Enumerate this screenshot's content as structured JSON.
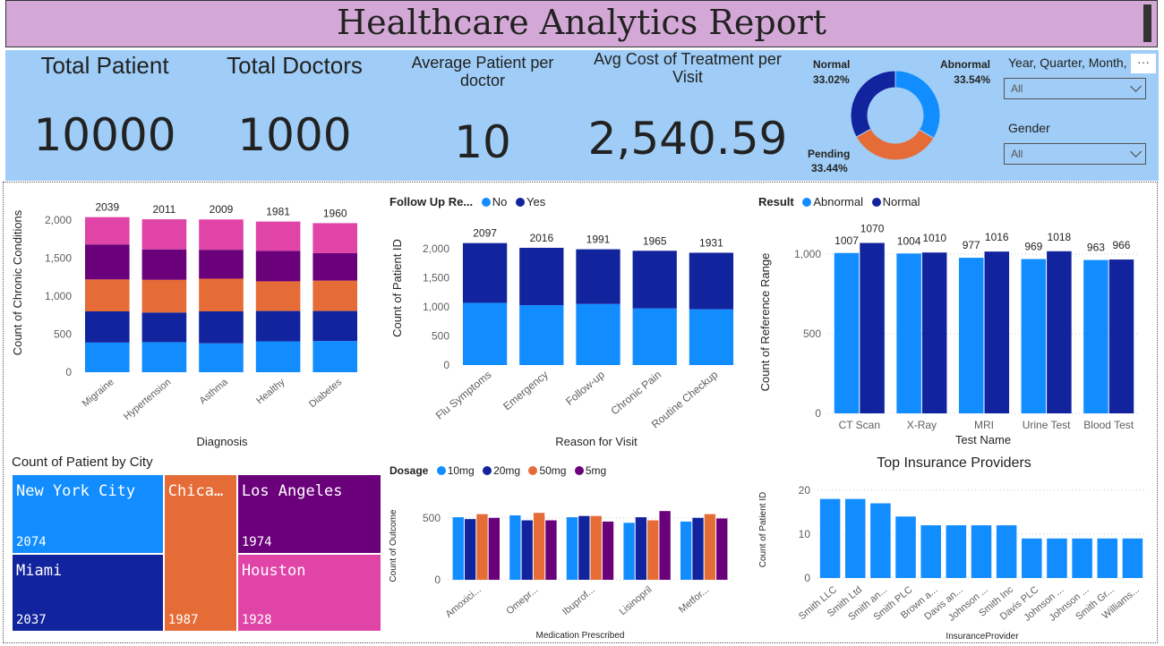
{
  "header": {
    "title": "Healthcare Analytics Report"
  },
  "kpis": [
    {
      "label": "Total Patient",
      "value": "10000"
    },
    {
      "label": "Total Doctors",
      "value": "1000"
    },
    {
      "label": "Average Patient per doctor",
      "value": "10"
    },
    {
      "label": "Avg Cost of Treatment per Visit",
      "value": "2,540.59"
    }
  ],
  "donut": {
    "labels": [
      {
        "name": "Normal",
        "pct": "33.02%"
      },
      {
        "name": "Abnormal",
        "pct": "33.54%"
      },
      {
        "name": "Pending",
        "pct": "33.44%"
      }
    ],
    "values": [
      33.54,
      33.44,
      33.02
    ],
    "colors": [
      "#118dff",
      "#e66c37",
      "#12239e"
    ]
  },
  "slicers": {
    "date": {
      "title": "Year, Quarter, Month,",
      "value": "All"
    },
    "gender": {
      "title": "Gender",
      "value": "All"
    },
    "more_label": "···"
  },
  "chart_data": [
    {
      "type": "bar",
      "stacked": true,
      "categories": [
        "Migraine",
        "Hypertension",
        "Asthma",
        "Healthy",
        "Diabetes"
      ],
      "totals": [
        "2039",
        "2011",
        "2009",
        "1981",
        "1960"
      ],
      "series": [
        {
          "color": "#118dff",
          "values": [
            390,
            395,
            380,
            405,
            410
          ]
        },
        {
          "color": "#12239e",
          "values": [
            410,
            390,
            420,
            400,
            395
          ]
        },
        {
          "color": "#e66c37",
          "values": [
            420,
            430,
            430,
            390,
            400
          ]
        },
        {
          "color": "#6b007b",
          "values": [
            460,
            400,
            380,
            400,
            360
          ]
        },
        {
          "color": "#e044a7",
          "values": [
            359,
            396,
            399,
            386,
            395
          ]
        }
      ],
      "xlabel": "Diagnosis",
      "ylabel": "Count of Chronic Conditions",
      "ylim": [
        0,
        2000
      ],
      "yticks": [
        "0",
        "500",
        "1,000",
        "1,500",
        "2,000"
      ]
    },
    {
      "type": "bar",
      "stacked": true,
      "legend_title": "Follow Up Re...",
      "categories": [
        "Flu Symptoms",
        "Emergency",
        "Follow-up",
        "Chronic Pain",
        "Routine Checkup"
      ],
      "totals": [
        "2097",
        "2016",
        "1991",
        "1965",
        "1931"
      ],
      "series": [
        {
          "name": "No",
          "color": "#118dff",
          "values": [
            1070,
            1030,
            1050,
            975,
            960
          ]
        },
        {
          "name": "Yes",
          "color": "#12239e",
          "values": [
            1027,
            986,
            941,
            990,
            971
          ]
        }
      ],
      "xlabel": "Reason for Visit",
      "ylabel": "Count of Patient ID",
      "ylim": [
        0,
        2000
      ],
      "yticks": [
        "0",
        "500",
        "1,000",
        "1,500",
        "2,000"
      ]
    },
    {
      "type": "bar",
      "grouped": true,
      "legend_title": "Result",
      "categories": [
        "CT Scan",
        "X-Ray",
        "MRI",
        "Urine Test",
        "Blood Test"
      ],
      "series": [
        {
          "name": "Abnormal",
          "color": "#118dff",
          "values": [
            1007,
            1004,
            977,
            969,
            963
          ]
        },
        {
          "name": "Normal",
          "color": "#12239e",
          "values": [
            1070,
            1010,
            1016,
            1018,
            966
          ]
        }
      ],
      "labels": [
        [
          "1007",
          "1070"
        ],
        [
          "1004",
          "1010"
        ],
        [
          "977",
          "1016"
        ],
        [
          "969",
          "1018"
        ],
        [
          "963",
          "966"
        ]
      ],
      "xlabel": "Test Name",
      "ylabel": "Count of Reference Range",
      "ylim": [
        0,
        1000
      ],
      "yticks": [
        "0",
        "500",
        "1,000"
      ]
    },
    {
      "type": "treemap",
      "title": "Count of Patient by City",
      "cells": [
        {
          "name": "New York City",
          "label": "2074",
          "value": 2074,
          "color": "#118dff"
        },
        {
          "name": "Miami",
          "label": "2037",
          "value": 2037,
          "color": "#12239e"
        },
        {
          "name": "Chica…",
          "label": "1987",
          "value": 1987,
          "color": "#e66c37"
        },
        {
          "name": "Los Angeles",
          "label": "1974",
          "value": 1974,
          "color": "#6b007b"
        },
        {
          "name": "Houston",
          "label": "1928",
          "value": 1928,
          "color": "#e044a7"
        }
      ]
    },
    {
      "type": "bar",
      "grouped": true,
      "legend_title": "Dosage",
      "categories": [
        "Amoxici...",
        "Omepr...",
        "Ibuprof...",
        "Lisinopril",
        "Metfor..."
      ],
      "series": [
        {
          "name": "10mg",
          "color": "#118dff",
          "values": [
            505,
            520,
            505,
            460,
            470
          ]
        },
        {
          "name": "20mg",
          "color": "#12239e",
          "values": [
            490,
            480,
            515,
            505,
            500
          ]
        },
        {
          "name": "50mg",
          "color": "#e66c37",
          "values": [
            530,
            540,
            515,
            480,
            530
          ]
        },
        {
          "name": "5mg",
          "color": "#6b007b",
          "values": [
            500,
            480,
            470,
            555,
            495
          ]
        }
      ],
      "xlabel": "Medication Prescribed",
      "ylabel": "Count of Outcome",
      "ylim": [
        0,
        650
      ],
      "yticks": [
        "0",
        "500"
      ]
    },
    {
      "type": "bar",
      "title": "Top Insurance Providers",
      "categories": [
        "Smith LLC",
        "Smith Ltd",
        "Smith an...",
        "Smith PLC",
        "Brown a...",
        "Davis an...",
        "Johnson ...",
        "Smith Inc",
        "Davis PLC",
        "Johnson ...",
        "Johnson ...",
        "Smith Gr...",
        "Williams..."
      ],
      "values": [
        18,
        18,
        17,
        14,
        12,
        12,
        12,
        12,
        9,
        9,
        9,
        9,
        9
      ],
      "color": "#118dff",
      "xlabel": "InsuranceProvider",
      "ylabel": "Count of Patient ID",
      "ylim": [
        0,
        22
      ],
      "yticks": [
        "0",
        "10",
        "20"
      ]
    }
  ]
}
